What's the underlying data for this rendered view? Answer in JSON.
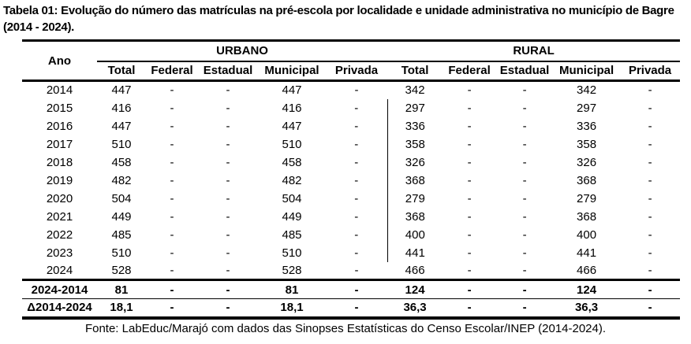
{
  "title": "Tabela 01: Evolução do número das matrículas na pré-escola por localidade e unidade administrativa no município de Bagre (2014 - 2024).",
  "table": {
    "corner_header": "Ano",
    "groups": [
      {
        "label": "URBANO",
        "columns": [
          "Total",
          "Federal",
          "Estadual",
          "Municipal",
          "Privada"
        ]
      },
      {
        "label": "RURAL",
        "columns": [
          "Total",
          "Federal",
          "Estadual",
          "Municipal",
          "Privada"
        ]
      }
    ],
    "rows": [
      {
        "ano": "2014",
        "urbano": [
          "447",
          "-",
          "-",
          "447",
          "-"
        ],
        "rural": [
          "342",
          "-",
          "-",
          "342",
          "-"
        ]
      },
      {
        "ano": "2015",
        "urbano": [
          "416",
          "-",
          "-",
          "416",
          "-"
        ],
        "rural": [
          "297",
          "-",
          "-",
          "297",
          "-"
        ]
      },
      {
        "ano": "2016",
        "urbano": [
          "447",
          "-",
          "-",
          "447",
          "-"
        ],
        "rural": [
          "336",
          "-",
          "-",
          "336",
          "-"
        ]
      },
      {
        "ano": "2017",
        "urbano": [
          "510",
          "-",
          "-",
          "510",
          "-"
        ],
        "rural": [
          "358",
          "-",
          "-",
          "358",
          "-"
        ]
      },
      {
        "ano": "2018",
        "urbano": [
          "458",
          "-",
          "-",
          "458",
          "-"
        ],
        "rural": [
          "326",
          "-",
          "-",
          "326",
          "-"
        ]
      },
      {
        "ano": "2019",
        "urbano": [
          "482",
          "-",
          "-",
          "482",
          "-"
        ],
        "rural": [
          "368",
          "-",
          "-",
          "368",
          "-"
        ]
      },
      {
        "ano": "2020",
        "urbano": [
          "504",
          "-",
          "-",
          "504",
          "-"
        ],
        "rural": [
          "279",
          "-",
          "-",
          "279",
          "-"
        ]
      },
      {
        "ano": "2021",
        "urbano": [
          "449",
          "-",
          "-",
          "449",
          "-"
        ],
        "rural": [
          "368",
          "-",
          "-",
          "368",
          "-"
        ]
      },
      {
        "ano": "2022",
        "urbano": [
          "485",
          "-",
          "-",
          "485",
          "-"
        ],
        "rural": [
          "400",
          "-",
          "-",
          "400",
          "-"
        ]
      },
      {
        "ano": "2023",
        "urbano": [
          "510",
          "-",
          "-",
          "510",
          "-"
        ],
        "rural": [
          "441",
          "-",
          "-",
          "441",
          "-"
        ]
      },
      {
        "ano": "2024",
        "urbano": [
          "528",
          "-",
          "-",
          "528",
          "-"
        ],
        "rural": [
          "466",
          "-",
          "-",
          "466",
          "-"
        ]
      }
    ],
    "summary_rows": [
      {
        "ano": "2024-2014",
        "urbano": [
          "81",
          "-",
          "-",
          "81",
          "-"
        ],
        "rural": [
          "124",
          "-",
          "-",
          "124",
          "-"
        ]
      },
      {
        "ano": "Δ2014-2024",
        "urbano": [
          "18,1",
          "-",
          "-",
          "18,1",
          "-"
        ],
        "rural": [
          "36,3",
          "-",
          "-",
          "36,3",
          "-"
        ]
      }
    ]
  },
  "source": "Fonte: LabEduc/Marajó com dados das Sinopses Estatísticas do Censo Escolar/INEP (2014-2024)."
}
